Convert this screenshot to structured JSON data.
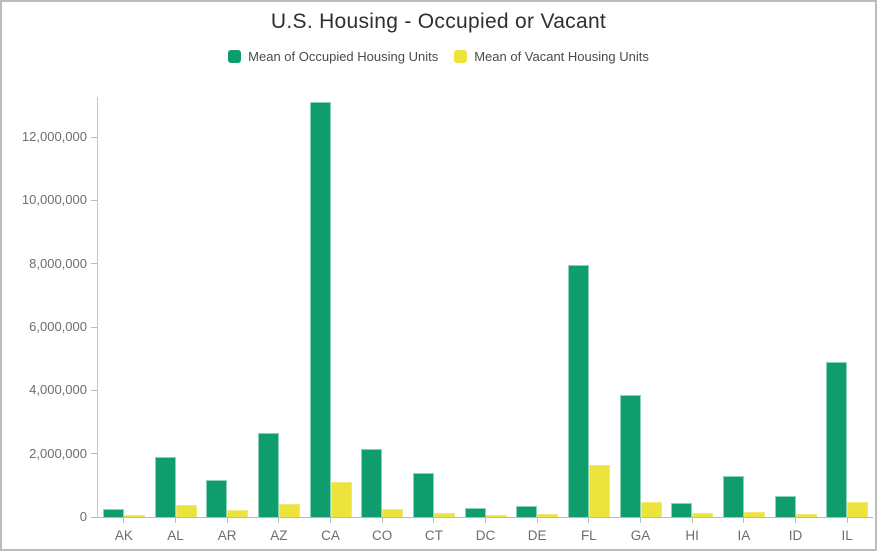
{
  "title": "U.S. Housing - Occupied or Vacant",
  "colors": {
    "occupied_green": "#0f9d6e",
    "occupied_green_border": "#8bd3b4",
    "vacant_yellow": "#ece33c",
    "vacant_yellow_border": "#f1e87d",
    "axis_line": "#c6c6c6",
    "tick_label": "#6e6e6e",
    "title_text": "#2f2f2f",
    "legend_text": "#4b4b4b",
    "canvas_border": "#bcbcbc"
  },
  "chart_data": {
    "type": "bar",
    "title": "U.S. Housing - Occupied or Vacant",
    "categories": [
      "AK",
      "AL",
      "AR",
      "AZ",
      "CA",
      "CO",
      "CT",
      "DC",
      "DE",
      "FL",
      "GA",
      "HI",
      "IA",
      "ID",
      "IL"
    ],
    "series": [
      {
        "name": "Mean of Occupied Housing Units",
        "color": "#0f9d6e",
        "border": "#8bd3b4",
        "values": [
          250000,
          1890000,
          1160000,
          2650000,
          13100000,
          2140000,
          1380000,
          270000,
          360000,
          7950000,
          3850000,
          450000,
          1280000,
          650000,
          4900000
        ]
      },
      {
        "name": "Mean of Vacant Housing Units",
        "color": "#ece33c",
        "border": "#f1e87d",
        "values": [
          60000,
          390000,
          210000,
          410000,
          1110000,
          240000,
          130000,
          55000,
          80000,
          1630000,
          480000,
          120000,
          150000,
          110000,
          470000
        ]
      }
    ],
    "xlabel": "",
    "ylabel": "",
    "ylim": [
      0,
      13270000
    ],
    "ytick_step": 2000000,
    "ytick_labels": [
      "0",
      "2,000,000",
      "4,000,000",
      "6,000,000",
      "8,000,000",
      "10,000,000",
      "12,000,000"
    ],
    "grid": false,
    "legend_position": "top"
  }
}
